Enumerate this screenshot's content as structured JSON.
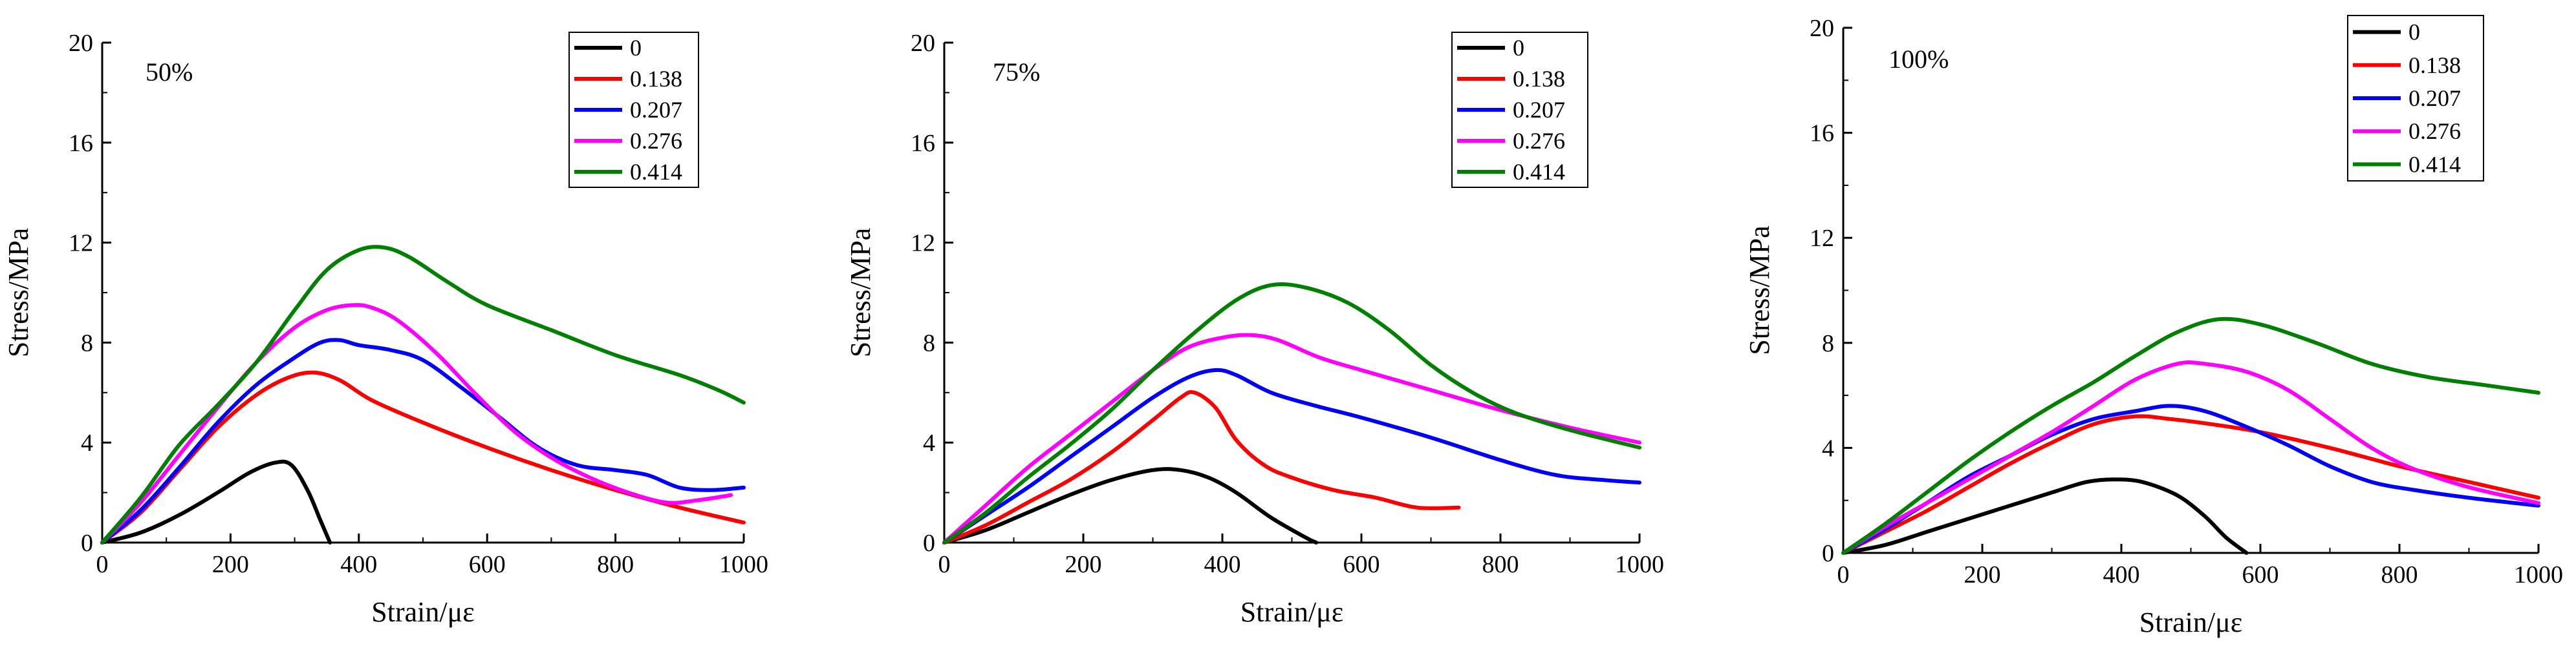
{
  "figure": {
    "background": "#ffffff"
  },
  "chart_data": [
    {
      "type": "line",
      "panel_label": "50%",
      "xlabel": "Strain/με",
      "ylabel": "Stress/MPa",
      "xlim": [
        0,
        1000
      ],
      "ylim": [
        0,
        20
      ],
      "xticks": [
        0,
        200,
        400,
        600,
        800,
        1000
      ],
      "yticks": [
        0,
        4,
        8,
        12,
        16,
        20
      ],
      "legend": "top-right",
      "series": [
        {
          "name": "0",
          "color": "#000000",
          "points": [
            [
              0,
              0
            ],
            [
              60,
              0.4
            ],
            [
              120,
              1.1
            ],
            [
              180,
              2.0
            ],
            [
              230,
              2.8
            ],
            [
              270,
              3.2
            ],
            [
              295,
              3.1
            ],
            [
              320,
              2.1
            ],
            [
              340,
              0.9
            ],
            [
              355,
              0
            ]
          ]
        },
        {
          "name": "0.138",
          "color": "#ff0000",
          "points": [
            [
              0,
              0
            ],
            [
              60,
              1.2
            ],
            [
              120,
              2.9
            ],
            [
              180,
              4.6
            ],
            [
              240,
              5.9
            ],
            [
              290,
              6.6
            ],
            [
              330,
              6.8
            ],
            [
              370,
              6.5
            ],
            [
              420,
              5.7
            ],
            [
              500,
              4.8
            ],
            [
              600,
              3.8
            ],
            [
              700,
              2.9
            ],
            [
              800,
              2.1
            ],
            [
              900,
              1.4
            ],
            [
              1000,
              0.8
            ]
          ]
        },
        {
          "name": "0.207",
          "color": "#0000ff",
          "points": [
            [
              0,
              0
            ],
            [
              60,
              1.3
            ],
            [
              120,
              3.0
            ],
            [
              180,
              4.8
            ],
            [
              240,
              6.3
            ],
            [
              300,
              7.4
            ],
            [
              340,
              8.0
            ],
            [
              370,
              8.1
            ],
            [
              400,
              7.9
            ],
            [
              450,
              7.7
            ],
            [
              500,
              7.3
            ],
            [
              560,
              6.2
            ],
            [
              620,
              5.0
            ],
            [
              680,
              3.8
            ],
            [
              740,
              3.1
            ],
            [
              800,
              2.9
            ],
            [
              850,
              2.7
            ],
            [
              900,
              2.2
            ],
            [
              950,
              2.1
            ],
            [
              1000,
              2.2
            ]
          ]
        },
        {
          "name": "0.276",
          "color": "#ff00ff",
          "points": [
            [
              0,
              0
            ],
            [
              60,
              1.6
            ],
            [
              120,
              3.5
            ],
            [
              180,
              5.4
            ],
            [
              240,
              7.2
            ],
            [
              300,
              8.6
            ],
            [
              350,
              9.3
            ],
            [
              390,
              9.5
            ],
            [
              420,
              9.4
            ],
            [
              460,
              8.9
            ],
            [
              520,
              7.6
            ],
            [
              580,
              6.0
            ],
            [
              640,
              4.5
            ],
            [
              700,
              3.4
            ],
            [
              760,
              2.6
            ],
            [
              820,
              2.0
            ],
            [
              880,
              1.6
            ],
            [
              930,
              1.7
            ],
            [
              980,
              1.9
            ]
          ]
        },
        {
          "name": "0.414",
          "color": "#008000",
          "points": [
            [
              0,
              0
            ],
            [
              60,
              1.8
            ],
            [
              120,
              3.9
            ],
            [
              180,
              5.5
            ],
            [
              240,
              7.2
            ],
            [
              300,
              9.3
            ],
            [
              350,
              10.9
            ],
            [
              400,
              11.7
            ],
            [
              440,
              11.8
            ],
            [
              480,
              11.4
            ],
            [
              540,
              10.4
            ],
            [
              600,
              9.5
            ],
            [
              700,
              8.5
            ],
            [
              800,
              7.5
            ],
            [
              900,
              6.7
            ],
            [
              960,
              6.1
            ],
            [
              1000,
              5.6
            ]
          ]
        }
      ]
    },
    {
      "type": "line",
      "panel_label": "75%",
      "xlabel": "Strain/με",
      "ylabel": "Stress/MPa",
      "xlim": [
        0,
        1000
      ],
      "ylim": [
        0,
        20
      ],
      "xticks": [
        0,
        200,
        400,
        600,
        800,
        1000
      ],
      "yticks": [
        0,
        4,
        8,
        12,
        16,
        20
      ],
      "legend": "top-right",
      "series": [
        {
          "name": "0",
          "color": "#000000",
          "points": [
            [
              0,
              0
            ],
            [
              60,
              0.5
            ],
            [
              120,
              1.2
            ],
            [
              180,
              1.9
            ],
            [
              240,
              2.5
            ],
            [
              300,
              2.9
            ],
            [
              340,
              2.9
            ],
            [
              380,
              2.6
            ],
            [
              420,
              2.0
            ],
            [
              470,
              1.0
            ],
            [
              520,
              0.2
            ],
            [
              535,
              0
            ]
          ]
        },
        {
          "name": "0.138",
          "color": "#ff0000",
          "points": [
            [
              0,
              0
            ],
            [
              60,
              0.7
            ],
            [
              120,
              1.6
            ],
            [
              180,
              2.5
            ],
            [
              240,
              3.6
            ],
            [
              300,
              4.9
            ],
            [
              340,
              5.8
            ],
            [
              360,
              6.0
            ],
            [
              390,
              5.4
            ],
            [
              420,
              4.1
            ],
            [
              460,
              3.1
            ],
            [
              500,
              2.6
            ],
            [
              560,
              2.1
            ],
            [
              620,
              1.8
            ],
            [
              680,
              1.4
            ],
            [
              740,
              1.4
            ]
          ]
        },
        {
          "name": "0.207",
          "color": "#0000ff",
          "points": [
            [
              0,
              0
            ],
            [
              60,
              1.1
            ],
            [
              120,
              2.2
            ],
            [
              180,
              3.4
            ],
            [
              240,
              4.6
            ],
            [
              300,
              5.8
            ],
            [
              350,
              6.6
            ],
            [
              390,
              6.9
            ],
            [
              420,
              6.7
            ],
            [
              470,
              6.0
            ],
            [
              530,
              5.5
            ],
            [
              600,
              5.0
            ],
            [
              700,
              4.2
            ],
            [
              800,
              3.3
            ],
            [
              880,
              2.7
            ],
            [
              950,
              2.5
            ],
            [
              1000,
              2.4
            ]
          ]
        },
        {
          "name": "0.276",
          "color": "#ff00ff",
          "points": [
            [
              0,
              0
            ],
            [
              60,
              1.5
            ],
            [
              120,
              3.0
            ],
            [
              180,
              4.3
            ],
            [
              240,
              5.6
            ],
            [
              300,
              6.9
            ],
            [
              350,
              7.8
            ],
            [
              400,
              8.2
            ],
            [
              440,
              8.3
            ],
            [
              480,
              8.1
            ],
            [
              540,
              7.4
            ],
            [
              600,
              6.9
            ],
            [
              700,
              6.1
            ],
            [
              800,
              5.3
            ],
            [
              900,
              4.6
            ],
            [
              1000,
              4.0
            ]
          ]
        },
        {
          "name": "0.414",
          "color": "#008000",
          "points": [
            [
              0,
              0
            ],
            [
              60,
              1.2
            ],
            [
              120,
              2.6
            ],
            [
              180,
              3.9
            ],
            [
              240,
              5.3
            ],
            [
              300,
              6.9
            ],
            [
              360,
              8.4
            ],
            [
              420,
              9.7
            ],
            [
              470,
              10.3
            ],
            [
              520,
              10.2
            ],
            [
              580,
              9.6
            ],
            [
              640,
              8.5
            ],
            [
              700,
              7.1
            ],
            [
              760,
              6.0
            ],
            [
              820,
              5.2
            ],
            [
              900,
              4.5
            ],
            [
              1000,
              3.8
            ]
          ]
        }
      ]
    },
    {
      "type": "line",
      "panel_label": "100%",
      "xlabel": "Strain/με",
      "ylabel": "Stress/MPa",
      "xlim": [
        0,
        1000
      ],
      "ylim": [
        0,
        20
      ],
      "xticks": [
        0,
        200,
        400,
        600,
        800,
        1000
      ],
      "yticks": [
        0,
        4,
        8,
        12,
        16,
        20
      ],
      "legend": "top-right",
      "series": [
        {
          "name": "0",
          "color": "#000000",
          "points": [
            [
              0,
              0
            ],
            [
              60,
              0.3
            ],
            [
              120,
              0.8
            ],
            [
              180,
              1.3
            ],
            [
              240,
              1.8
            ],
            [
              300,
              2.3
            ],
            [
              350,
              2.7
            ],
            [
              390,
              2.8
            ],
            [
              430,
              2.7
            ],
            [
              480,
              2.2
            ],
            [
              520,
              1.4
            ],
            [
              550,
              0.6
            ],
            [
              580,
              0
            ]
          ]
        },
        {
          "name": "0.138",
          "color": "#ff0000",
          "points": [
            [
              0,
              0
            ],
            [
              60,
              0.8
            ],
            [
              120,
              1.6
            ],
            [
              180,
              2.5
            ],
            [
              240,
              3.4
            ],
            [
              300,
              4.2
            ],
            [
              360,
              4.9
            ],
            [
              420,
              5.2
            ],
            [
              470,
              5.1
            ],
            [
              530,
              4.9
            ],
            [
              600,
              4.6
            ],
            [
              700,
              4.0
            ],
            [
              800,
              3.3
            ],
            [
              900,
              2.7
            ],
            [
              1000,
              2.1
            ]
          ]
        },
        {
          "name": "0.207",
          "color": "#0000ff",
          "points": [
            [
              0,
              0
            ],
            [
              60,
              0.9
            ],
            [
              120,
              1.9
            ],
            [
              180,
              2.9
            ],
            [
              240,
              3.7
            ],
            [
              300,
              4.5
            ],
            [
              360,
              5.1
            ],
            [
              420,
              5.4
            ],
            [
              470,
              5.6
            ],
            [
              520,
              5.4
            ],
            [
              580,
              4.8
            ],
            [
              640,
              4.1
            ],
            [
              700,
              3.3
            ],
            [
              760,
              2.7
            ],
            [
              820,
              2.4
            ],
            [
              900,
              2.1
            ],
            [
              1000,
              1.8
            ]
          ]
        },
        {
          "name": "0.276",
          "color": "#ff00ff",
          "points": [
            [
              0,
              0
            ],
            [
              60,
              1.0
            ],
            [
              120,
              1.9
            ],
            [
              180,
              2.8
            ],
            [
              240,
              3.7
            ],
            [
              300,
              4.6
            ],
            [
              360,
              5.6
            ],
            [
              420,
              6.6
            ],
            [
              480,
              7.2
            ],
            [
              520,
              7.2
            ],
            [
              580,
              6.9
            ],
            [
              640,
              6.2
            ],
            [
              700,
              5.1
            ],
            [
              760,
              4.0
            ],
            [
              820,
              3.2
            ],
            [
              900,
              2.5
            ],
            [
              1000,
              1.9
            ]
          ]
        },
        {
          "name": "0.414",
          "color": "#008000",
          "points": [
            [
              0,
              0
            ],
            [
              60,
              1.1
            ],
            [
              120,
              2.3
            ],
            [
              180,
              3.5
            ],
            [
              240,
              4.6
            ],
            [
              300,
              5.6
            ],
            [
              360,
              6.5
            ],
            [
              420,
              7.5
            ],
            [
              480,
              8.4
            ],
            [
              540,
              8.9
            ],
            [
              600,
              8.7
            ],
            [
              680,
              8.0
            ],
            [
              760,
              7.2
            ],
            [
              840,
              6.7
            ],
            [
              920,
              6.4
            ],
            [
              1000,
              6.1
            ]
          ]
        }
      ]
    }
  ]
}
